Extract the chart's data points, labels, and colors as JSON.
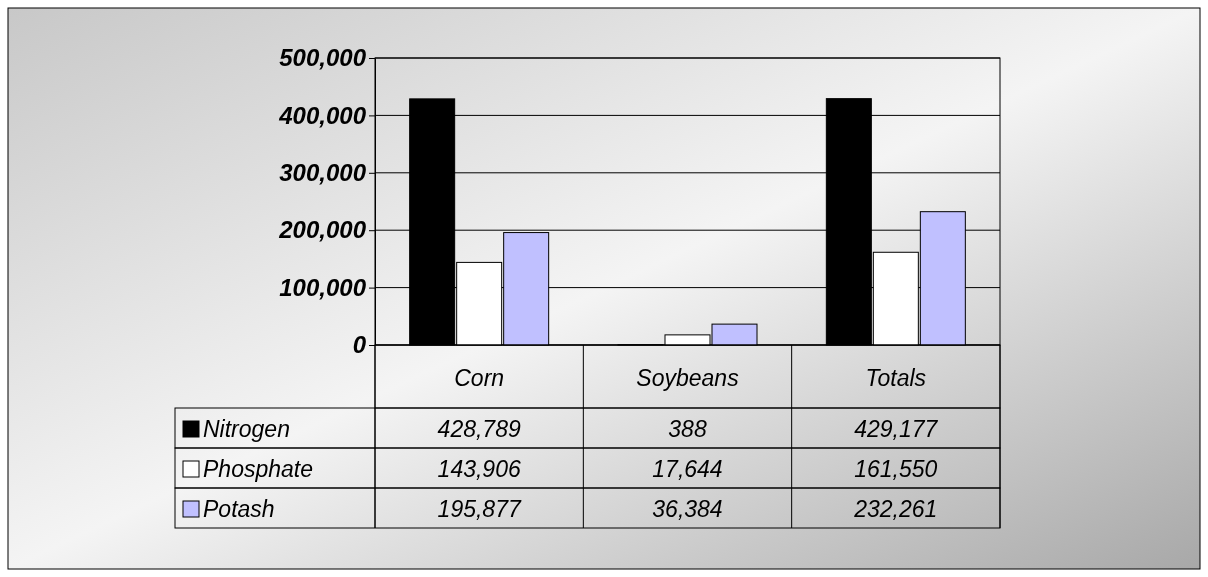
{
  "chart_data": {
    "type": "bar",
    "categories": [
      "Corn",
      "Soybeans",
      "Totals"
    ],
    "series": [
      {
        "name": "Nitrogen",
        "color": "#000000",
        "values": [
          428789,
          388,
          429177
        ],
        "value_labels": [
          "428,789",
          "388",
          "429,177"
        ]
      },
      {
        "name": "Phosphate",
        "color": "#ffffff",
        "values": [
          143906,
          17644,
          161550
        ],
        "value_labels": [
          "143,906",
          "17,644",
          "161,550"
        ]
      },
      {
        "name": "Potash",
        "color": "#c0c0ff",
        "values": [
          195877,
          36384,
          232261
        ],
        "value_labels": [
          "195,877",
          "36,384",
          "232,261"
        ]
      }
    ],
    "ylim": [
      0,
      500000
    ],
    "yticks": [
      0,
      {
        "value": 100000,
        "label": "100,000"
      },
      {
        "value": 200000,
        "label": "200,000"
      },
      {
        "value": 300000,
        "label": "300,000"
      },
      {
        "value": 400000,
        "label": "400,000"
      },
      {
        "value": 500000,
        "label": "500,000"
      }
    ],
    "grid": "y",
    "legend": "bottom"
  }
}
